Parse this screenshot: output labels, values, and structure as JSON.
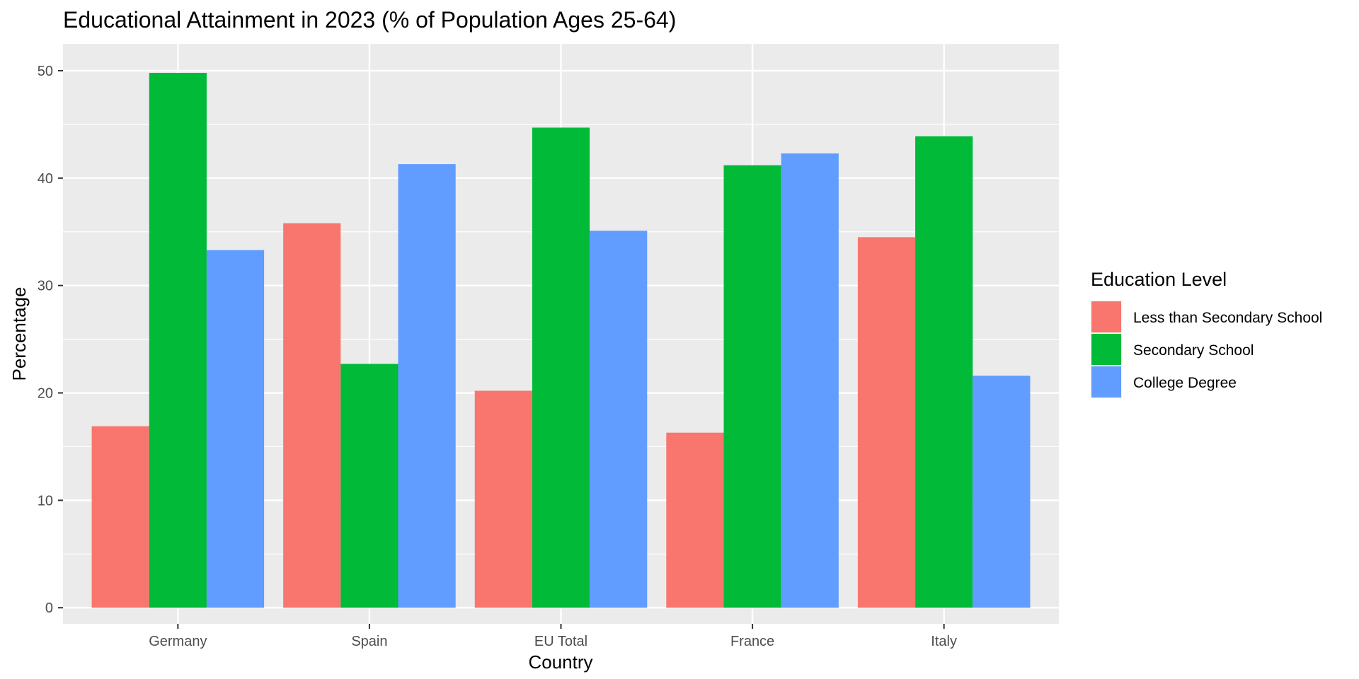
{
  "chart_data": {
    "type": "bar",
    "title": "Educational Attainment in 2023 (% of Population Ages 25-64)",
    "xlabel": "Country",
    "ylabel": "Percentage",
    "categories": [
      "Germany",
      "Spain",
      "EU Total",
      "France",
      "Italy"
    ],
    "ylim": [
      -1.5,
      52.5
    ],
    "yticks": [
      0,
      10,
      20,
      30,
      40,
      50
    ],
    "grid": true,
    "legend": {
      "title": "Education Level",
      "position": "right"
    },
    "series": [
      {
        "name": "Less than Secondary School",
        "color": "#F8766D",
        "values": [
          16.9,
          35.8,
          20.2,
          16.3,
          34.5
        ]
      },
      {
        "name": "Secondary School",
        "color": "#00BA38",
        "values": [
          49.8,
          22.7,
          44.7,
          41.2,
          43.9
        ]
      },
      {
        "name": "College Degree",
        "color": "#619CFF",
        "values": [
          33.3,
          41.3,
          35.1,
          42.3,
          21.6
        ]
      }
    ]
  }
}
